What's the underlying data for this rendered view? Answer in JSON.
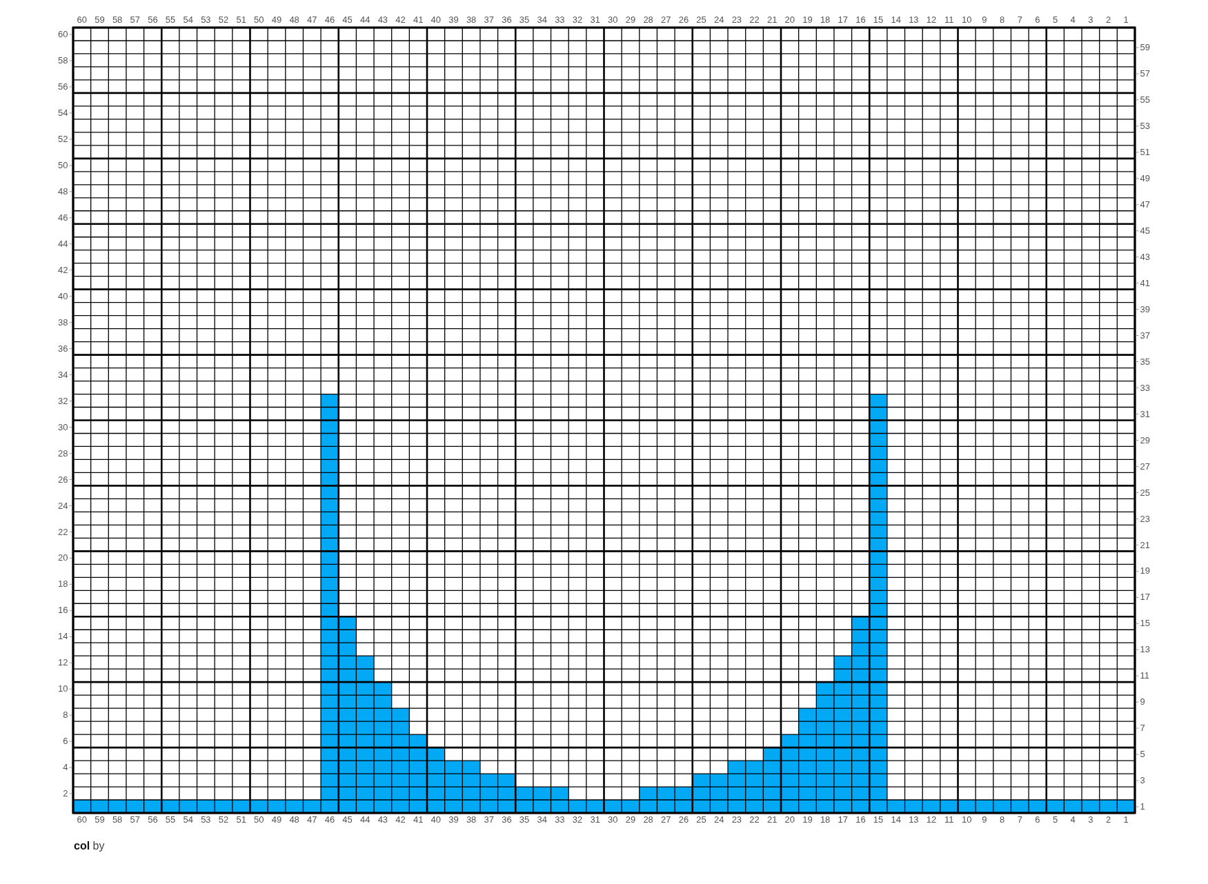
{
  "chart_data": {
    "type": "bar",
    "title": "col by",
    "categories": [
      "60",
      "59",
      "58",
      "57",
      "56",
      "55",
      "54",
      "53",
      "52",
      "51",
      "50",
      "49",
      "48",
      "47",
      "46",
      "45",
      "44",
      "43",
      "42",
      "41",
      "40",
      "39",
      "38",
      "37",
      "36",
      "35",
      "34",
      "33",
      "32",
      "31",
      "30",
      "29",
      "28",
      "27",
      "26",
      "25",
      "24",
      "23",
      "22",
      "21",
      "20",
      "19",
      "18",
      "17",
      "16",
      "15",
      "14",
      "13",
      "12",
      "11",
      "10",
      "9",
      "8",
      "7",
      "6",
      "5",
      "4",
      "3",
      "2",
      "1"
    ],
    "values": [
      1,
      1,
      1,
      1,
      1,
      1,
      1,
      1,
      1,
      1,
      1,
      1,
      1,
      1,
      32,
      15,
      12,
      10,
      8,
      6,
      5,
      4,
      4,
      3,
      3,
      2,
      2,
      2,
      1,
      1,
      1,
      1,
      2,
      2,
      2,
      3,
      3,
      4,
      4,
      5,
      6,
      8,
      10,
      12,
      15,
      32,
      1,
      1,
      1,
      1,
      1,
      1,
      1,
      1,
      1,
      1,
      1,
      1,
      1,
      1
    ],
    "base": [
      0.5,
      0.5,
      0.5,
      0.5,
      0.5,
      0.5,
      0.5,
      0.5,
      0.5,
      0.5,
      0.5,
      0.5,
      0.5,
      0.5,
      0.5,
      0.5,
      0.5,
      0.5,
      0.5,
      0.5,
      0.5,
      0.5,
      0.5,
      0.5,
      0.5,
      0.5,
      0.5,
      0.5,
      0.5,
      0.5,
      0.5,
      0.5,
      0.5,
      0.5,
      0.5,
      0.5,
      0.5,
      0.5,
      0.5,
      0.5,
      0.5,
      0.5,
      0.5,
      0.5,
      0.5,
      0.5,
      0.5,
      0.5,
      0.5,
      0.5,
      0.5,
      0.5,
      0.5,
      0.5,
      0.5,
      0.5,
      0.5,
      0.5,
      0.5,
      0.5
    ],
    "color": "#03a9f4",
    "ylim": [
      0.5,
      60.5
    ],
    "yticks": [
      2,
      4,
      6,
      8,
      10,
      12,
      14,
      16,
      18,
      20,
      22,
      24,
      26,
      28,
      30,
      32,
      34,
      36,
      38,
      40,
      42,
      44,
      46,
      48,
      50,
      52,
      54,
      56,
      58,
      60
    ],
    "y2lim": [
      0.5,
      60.5
    ],
    "y2ticks": [
      1,
      3,
      5,
      7,
      9,
      11,
      13,
      15,
      17,
      19,
      21,
      23,
      25,
      27,
      29,
      31,
      33,
      35,
      37,
      39,
      41,
      43,
      45,
      47,
      49,
      51,
      53,
      55,
      57,
      59
    ],
    "grid": true
  }
}
